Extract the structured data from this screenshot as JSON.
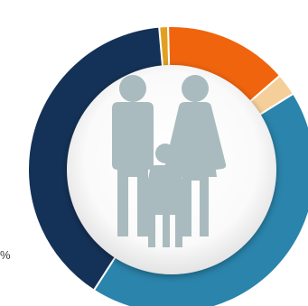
{
  "chart_data": {
    "type": "pie",
    "title": "",
    "categories": [
      "",
      "",
      "",
      "",
      ""
    ],
    "values": [
      1,
      14,
      2.5,
      43,
      39.5
    ],
    "colors": [
      "#e0a020",
      "#f0640e",
      "#f5cf9a",
      "#2a84ab",
      "#143257"
    ],
    "center_icon": "family-icon",
    "label_fragment": "%"
  }
}
